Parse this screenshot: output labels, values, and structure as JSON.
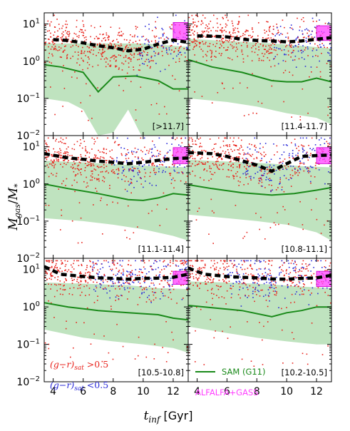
{
  "chart_data": {
    "type": "scatter",
    "xlabel": "t_inf [Gyr]",
    "ylabel": "M_gas/M_*",
    "xlim": [
      3.4,
      13.0
    ],
    "ylim_log10": [
      -2,
      1.3
    ],
    "x_ticks": [
      4,
      6,
      8,
      10,
      12
    ],
    "y_ticks": [
      "10^{-2}",
      "10^{-1}",
      "10^{0}",
      "10^{1}"
    ],
    "colors": {
      "red_points": "#e8231c",
      "blue_points": "#2b2bd8",
      "sam_line": "#1a8a1a",
      "sam_band": "#bfe3bf",
      "median": "#000000",
      "alfalfa_box": "#ff40ff"
    },
    "panels": [
      {
        "label": "[>11.7]",
        "median": {
          "x": [
            4,
            5,
            6,
            7,
            8,
            9,
            10,
            11,
            12,
            13
          ],
          "y": [
            3.8,
            3.6,
            3.1,
            2.6,
            2.3,
            1.9,
            2.1,
            2.9,
            3.7,
            3.2
          ]
        },
        "sam": {
          "x": [
            3.4,
            4.5,
            6,
            7,
            8,
            9.5,
            11,
            12,
            13
          ],
          "y": [
            0.8,
            0.7,
            0.5,
            0.15,
            0.38,
            0.4,
            0.3,
            0.18,
            0.18
          ]
        },
        "band_hi": {
          "x": [
            3.4,
            6,
            8,
            10,
            12,
            13
          ],
          "y": [
            3.0,
            3.0,
            3.0,
            3.0,
            2.6,
            2.4
          ]
        },
        "band_lo": {
          "x": [
            3.4,
            5,
            6,
            7,
            8,
            9,
            10,
            11,
            12,
            13
          ],
          "y": [
            0.1,
            0.08,
            0.05,
            0.01,
            0.012,
            0.05,
            0.008,
            0.009,
            0.009,
            0.009
          ]
        },
        "box": {
          "x": [
            12.0,
            13.0
          ],
          "y": [
            3.8,
            11.0
          ]
        },
        "blue_from_x": 9.5
      },
      {
        "label": "[11.4-11.7]",
        "median": {
          "x": [
            4,
            5,
            6,
            7,
            8,
            9,
            10,
            11,
            12,
            13
          ],
          "y": [
            4.8,
            4.7,
            4.5,
            3.9,
            3.6,
            3.5,
            3.3,
            3.5,
            3.9,
            4.3
          ]
        },
        "sam": {
          "x": [
            3.4,
            5,
            7,
            9,
            10,
            11,
            12,
            13
          ],
          "y": [
            1.1,
            0.7,
            0.5,
            0.3,
            0.28,
            0.28,
            0.35,
            0.28
          ]
        },
        "band_hi": {
          "x": [
            3.4,
            6,
            9,
            11,
            13
          ],
          "y": [
            4.0,
            3.5,
            3.0,
            2.6,
            2.2
          ]
        },
        "band_lo": {
          "x": [
            3.4,
            6,
            8,
            10,
            12,
            13
          ],
          "y": [
            0.1,
            0.08,
            0.06,
            0.04,
            0.03,
            0.02
          ]
        },
        "box": {
          "x": [
            12.0,
            13.0
          ],
          "y": [
            3.6,
            9.0
          ]
        },
        "blue_from_x": 9.0
      },
      {
        "label": "[11.1-11.4]",
        "median": {
          "x": [
            3.4,
            5,
            6,
            7,
            8,
            9,
            10,
            11,
            12,
            13
          ],
          "y": [
            6.5,
            5.0,
            4.6,
            4.1,
            3.8,
            3.5,
            3.8,
            4.3,
            4.8,
            5.0
          ]
        },
        "sam": {
          "x": [
            3.4,
            5,
            7,
            9,
            10,
            11,
            12,
            13
          ],
          "y": [
            1.0,
            0.75,
            0.55,
            0.38,
            0.36,
            0.42,
            0.55,
            0.5
          ]
        },
        "band_hi": {
          "x": [
            3.4,
            6,
            9,
            11,
            13
          ],
          "y": [
            4.2,
            3.8,
            3.2,
            3.0,
            2.8
          ]
        },
        "band_lo": {
          "x": [
            3.4,
            6,
            8,
            10,
            12,
            13
          ],
          "y": [
            0.12,
            0.1,
            0.08,
            0.06,
            0.04,
            0.03
          ]
        },
        "box": {
          "x": [
            12.0,
            13.0
          ],
          "y": [
            3.5,
            9.5
          ]
        },
        "blue_from_x": 8.0
      },
      {
        "label": "[10.8-11.1]",
        "median": {
          "x": [
            3.4,
            5,
            6,
            7,
            8,
            9,
            10,
            11,
            12,
            13
          ],
          "y": [
            7.0,
            6.5,
            5.5,
            4.2,
            3.2,
            2.2,
            3.5,
            5.5,
            5.8,
            6.0
          ]
        },
        "sam": {
          "x": [
            3.4,
            5,
            7,
            9,
            10.5,
            12,
            13
          ],
          "y": [
            0.95,
            0.75,
            0.58,
            0.5,
            0.55,
            0.68,
            0.8
          ]
        },
        "band_hi": {
          "x": [
            3.4,
            6,
            9,
            11,
            13
          ],
          "y": [
            4.5,
            4.0,
            3.5,
            3.0,
            2.8
          ]
        },
        "band_lo": {
          "x": [
            3.4,
            6,
            8,
            10,
            12,
            13
          ],
          "y": [
            0.15,
            0.12,
            0.1,
            0.08,
            0.05,
            0.03
          ]
        },
        "box": {
          "x": [
            12.0,
            13.0
          ],
          "y": [
            3.5,
            9.5
          ]
        },
        "blue_from_x": 7.0
      },
      {
        "label": "[10.5-10.8]",
        "median": {
          "x": [
            3.4,
            4.5,
            6,
            7,
            8,
            9,
            10,
            11,
            12,
            13
          ],
          "y": [
            12.0,
            7.5,
            6.5,
            6.0,
            5.8,
            5.5,
            5.8,
            5.9,
            6.2,
            7.5
          ]
        },
        "sam": {
          "x": [
            3.4,
            5,
            7,
            9,
            11,
            12,
            13
          ],
          "y": [
            1.3,
            1.0,
            0.8,
            0.7,
            0.62,
            0.5,
            0.45
          ]
        },
        "band_hi": {
          "x": [
            3.4,
            6,
            9,
            11,
            13
          ],
          "y": [
            4.5,
            4.2,
            3.8,
            3.2,
            3.0
          ]
        },
        "band_lo": {
          "x": [
            3.4,
            6,
            8,
            10,
            12,
            13
          ],
          "y": [
            0.25,
            0.15,
            0.12,
            0.1,
            0.08,
            0.06
          ]
        },
        "box": {
          "x": [
            12.0,
            13.0
          ],
          "y": [
            4.0,
            9.0
          ]
        },
        "blue_from_x": 6.5
      },
      {
        "label": "[10.2-10.5]",
        "median": {
          "x": [
            3.4,
            4.5,
            6,
            7,
            8,
            9,
            10,
            11,
            12,
            13
          ],
          "y": [
            11.0,
            7.5,
            6.5,
            6.2,
            6.0,
            5.6,
            5.5,
            5.8,
            6.0,
            7.0
          ]
        },
        "sam": {
          "x": [
            3.4,
            5,
            7,
            9,
            10,
            11,
            12,
            13
          ],
          "y": [
            1.1,
            0.95,
            0.8,
            0.55,
            0.7,
            0.8,
            1.0,
            1.0
          ]
        },
        "band_hi": {
          "x": [
            3.4,
            6,
            9,
            11,
            13
          ],
          "y": [
            4.8,
            4.5,
            4.0,
            3.5,
            3.2
          ]
        },
        "band_lo": {
          "x": [
            3.4,
            6,
            8,
            10,
            12,
            13
          ],
          "y": [
            0.3,
            0.2,
            0.15,
            0.12,
            0.1,
            0.1
          ]
        },
        "box": {
          "x": [
            12.0,
            13.0
          ],
          "y": [
            3.5,
            9.0
          ]
        },
        "blue_from_x": 6.0
      }
    ]
  },
  "legend": {
    "red_label_a": "(g−r)",
    "red_label_sub": "sat",
    "red_label_b": " >0.5",
    "blue_label_a": "(g−r)",
    "blue_label_sub": "sat",
    "blue_label_b": " <0.5",
    "sam_label": "SAM (G11)",
    "alfalfa_label": "ALFALFA+GASS"
  }
}
